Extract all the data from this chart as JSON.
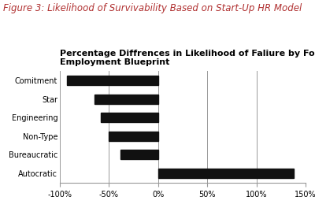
{
  "title_figure": "Figure 3: Likelihood of Survivability Based on Start-Up HR Model",
  "title_chart": "Percentage Diffrences in Likelihood of Faliure by Founder’s\nEmployment Blueprint",
  "categories": [
    "Comitment",
    "Star",
    "Engineering",
    "Non-Type",
    "Bureaucratic",
    "Autocratic"
  ],
  "values": [
    -93,
    -65,
    -58,
    -50,
    -38,
    138
  ],
  "bar_color": "#111111",
  "xlim": [
    -100,
    150
  ],
  "xticks": [
    -100,
    -50,
    0,
    50,
    100,
    150
  ],
  "xticklabels": [
    "-100%",
    "-50%",
    "0%",
    "50%",
    "100%",
    "150%"
  ],
  "figure_title_color": "#b03030",
  "figure_title_fontsize": 8.5,
  "chart_title_fontsize": 8,
  "bar_height": 0.5,
  "grid_color": "#999999",
  "background_color": "#ffffff",
  "label_fontsize": 7,
  "tick_fontsize": 7
}
